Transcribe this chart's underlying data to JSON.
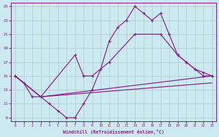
{
  "xlabel": "Windchill (Refroidissement éolien,°C)",
  "xlim": [
    0,
    23
  ],
  "ylim": [
    9,
    25
  ],
  "yticks": [
    9,
    11,
    13,
    15,
    17,
    19,
    21,
    23,
    25
  ],
  "xticks": [
    0,
    1,
    2,
    3,
    4,
    5,
    6,
    7,
    8,
    9,
    10,
    11,
    12,
    13,
    14,
    15,
    16,
    17,
    18,
    19,
    20,
    21,
    22,
    23
  ],
  "bg_color": "#cce8f0",
  "grid_color": "#aaccbb",
  "line_color": "#882288",
  "line1_x": [
    0,
    1,
    2,
    3,
    4,
    5,
    6,
    7,
    8,
    9,
    10,
    11,
    12,
    13,
    14,
    15,
    16,
    17,
    18,
    19,
    20,
    21,
    22,
    23
  ],
  "line1_y": [
    15,
    14,
    12,
    12,
    11,
    10,
    9,
    9,
    11,
    13,
    16,
    20,
    22,
    23,
    25,
    24,
    23,
    24,
    21,
    18,
    17,
    16,
    15,
    15
  ],
  "line2_x": [
    0,
    3,
    7,
    8,
    9,
    11,
    14,
    17,
    19,
    20,
    21,
    22,
    23
  ],
  "line2_y": [
    15,
    12,
    18,
    15,
    15,
    17,
    21,
    21,
    18,
    17,
    16,
    15.5,
    15
  ],
  "line3_x": [
    0,
    3,
    23
  ],
  "line3_y": [
    15,
    12,
    15
  ],
  "line4_x": [
    0,
    3,
    23
  ],
  "line4_y": [
    15,
    12,
    14
  ]
}
